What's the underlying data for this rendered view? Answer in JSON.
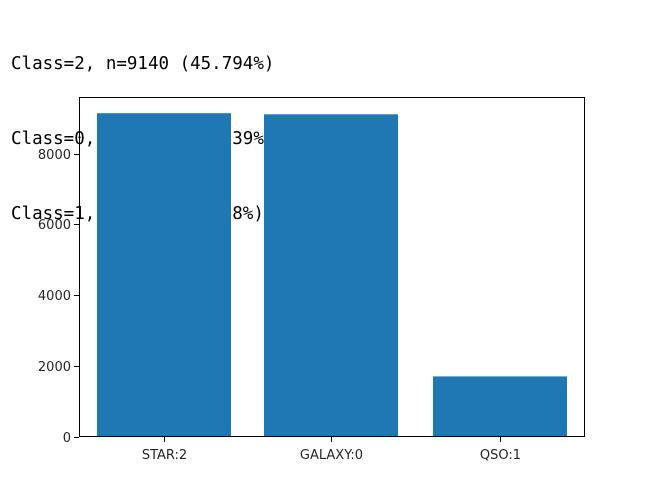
{
  "console_output": [
    "Class=2, n=9140 (45.794%)",
    "Class=0, n=9109 (45.639%)",
    "Class=1, n=1710 (8.568%)"
  ],
  "chart_data": {
    "type": "bar",
    "categories": [
      "STAR:2",
      "GALAXY:0",
      "QSO:1"
    ],
    "values": [
      9140,
      9109,
      1710
    ],
    "ylim": [
      0,
      9597
    ],
    "yticks": [
      0,
      2000,
      4000,
      6000,
      8000
    ],
    "bar_color": "#1f77b4",
    "grid": false,
    "legend": "none",
    "title": "",
    "xlabel": "",
    "ylabel": ""
  }
}
